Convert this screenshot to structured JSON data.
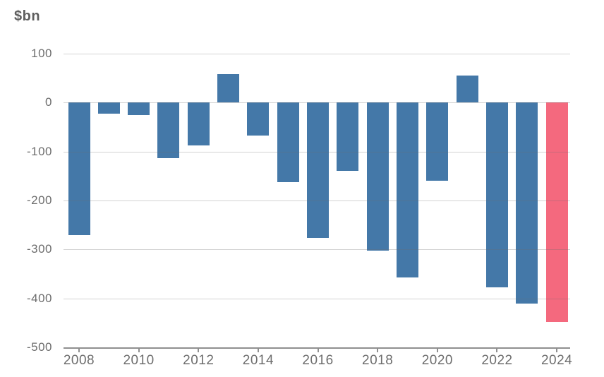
{
  "chart_data": {
    "type": "bar",
    "title": "",
    "ylabel": "$bn",
    "xlabel": "",
    "x": [
      2008,
      2009,
      2010,
      2011,
      2012,
      2013,
      2014,
      2015,
      2016,
      2017,
      2018,
      2019,
      2020,
      2021,
      2022,
      2023,
      2024
    ],
    "values": [
      -270,
      -22,
      -26,
      -113,
      -87,
      58,
      -68,
      -162,
      -276,
      -139,
      -303,
      -357,
      -160,
      55,
      -378,
      -411,
      -448
    ],
    "ylim": [
      -500,
      100
    ],
    "yticks": [
      100,
      0,
      -100,
      -200,
      -300,
      -400,
      -500
    ],
    "xtick_labels": [
      "2008",
      "2010",
      "2012",
      "2014",
      "2016",
      "2018",
      "2020",
      "2022",
      "2024"
    ],
    "xtick_years": [
      2008,
      2010,
      2012,
      2014,
      2016,
      2018,
      2020,
      2022,
      2024
    ],
    "grid": true,
    "legend": "none",
    "highlight_year": 2024,
    "colors": {
      "bar_default": "#4478A8",
      "bar_highlight": "#F4697E",
      "axis_line": "#8f8f8f",
      "gridline": "#d4d4d4",
      "tick_text": "#6e6e6e",
      "unit_text": "#5f5f5f",
      "background": "#ffffff"
    }
  }
}
